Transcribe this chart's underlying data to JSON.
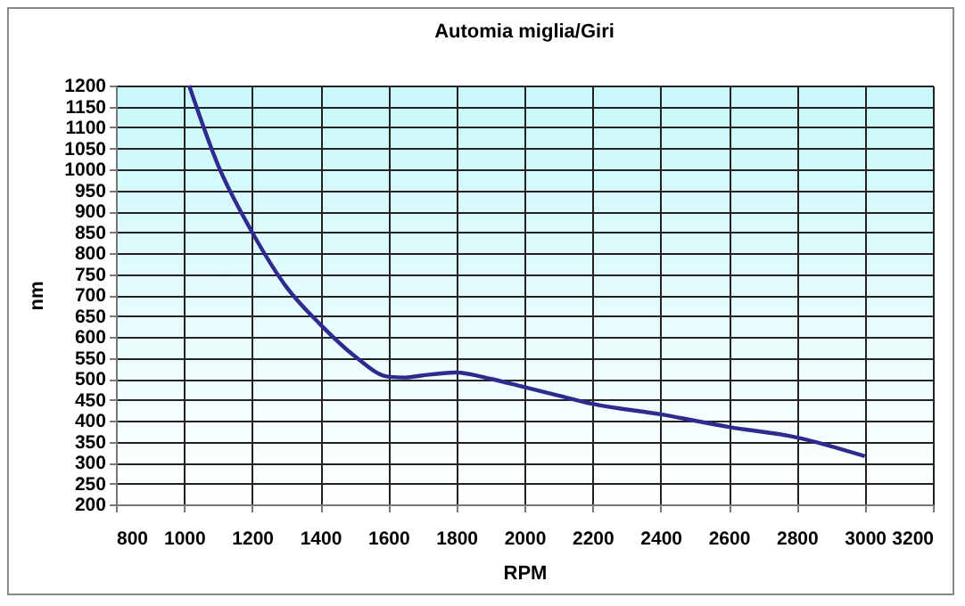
{
  "chart_data": {
    "type": "line",
    "title": "Automia miglia/Giri",
    "xlabel": "RPM",
    "ylabel": "nm",
    "x": [
      1015,
      1100,
      1200,
      1300,
      1400,
      1500,
      1600,
      1650,
      1700,
      1800,
      1900,
      2000,
      2100,
      2200,
      2400,
      2600,
      2800,
      3000
    ],
    "series": [
      {
        "color": "#2e2a8e",
        "values": [
          1200,
          1010,
          850,
          720,
          630,
          555,
          505,
          503,
          508,
          515,
          500,
          480,
          460,
          440,
          415,
          385,
          360,
          315
        ]
      }
    ],
    "xlim": [
      800,
      3200
    ],
    "xticks": [
      800,
      1000,
      1200,
      1400,
      1600,
      1800,
      2000,
      2200,
      2400,
      2600,
      2800,
      3000,
      3200
    ],
    "ylim": [
      200,
      1200
    ],
    "yticks": [
      200,
      250,
      300,
      350,
      400,
      450,
      500,
      550,
      600,
      650,
      700,
      750,
      800,
      850,
      900,
      950,
      1000,
      1050,
      1100,
      1150,
      1200
    ],
    "grid": true,
    "marker": "none",
    "line_style": "solid"
  }
}
